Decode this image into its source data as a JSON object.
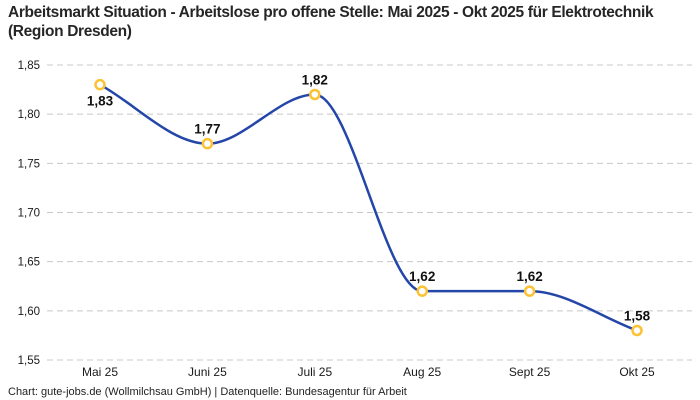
{
  "title": "Arbeitsmarkt Situation - Arbeitslose pro offene Stelle: Mai 2025 - Okt 2025 für Elektrotechnik (Region Dresden)",
  "footer": "Chart: gute-jobs.de (Wollmilchsau GmbH) | Datenquelle: Bundesagentur für Arbeit",
  "chart_data": {
    "type": "line",
    "title": "Arbeitsmarkt Situation - Arbeitslose pro offene Stelle: Mai 2025 - Okt 2025 für Elektrotechnik (Region Dresden)",
    "xlabel": "",
    "ylabel": "",
    "categories": [
      "Mai 25",
      "Juni 25",
      "Juli 25",
      "Aug 25",
      "Sept 25",
      "Okt 25"
    ],
    "values": [
      1.83,
      1.77,
      1.82,
      1.62,
      1.62,
      1.58
    ],
    "point_labels": [
      "1,83",
      "1,77",
      "1,82",
      "1,62",
      "1,62",
      "1,58"
    ],
    "point_label_positions": [
      "below",
      "above",
      "above",
      "above",
      "above",
      "above"
    ],
    "y_tick_values": [
      1.85,
      1.8,
      1.75,
      1.7,
      1.65,
      1.6,
      1.55
    ],
    "y_tick_labels": [
      "1,85",
      "1,80",
      "1,75",
      "1,70",
      "1,65",
      "1,60",
      "1,55"
    ],
    "ylim": [
      1.55,
      1.85
    ],
    "grid": "horizontal-dashed",
    "legend": "none",
    "curve": "monotone-smooth",
    "colors": {
      "line": "#2346a8",
      "marker_stroke": "#fbc233",
      "marker_fill": "#ffffff",
      "grid": "#c8c8c8",
      "tick_text": "#1a1a1a",
      "label_text": "#111111",
      "title_text": "#262626"
    }
  }
}
